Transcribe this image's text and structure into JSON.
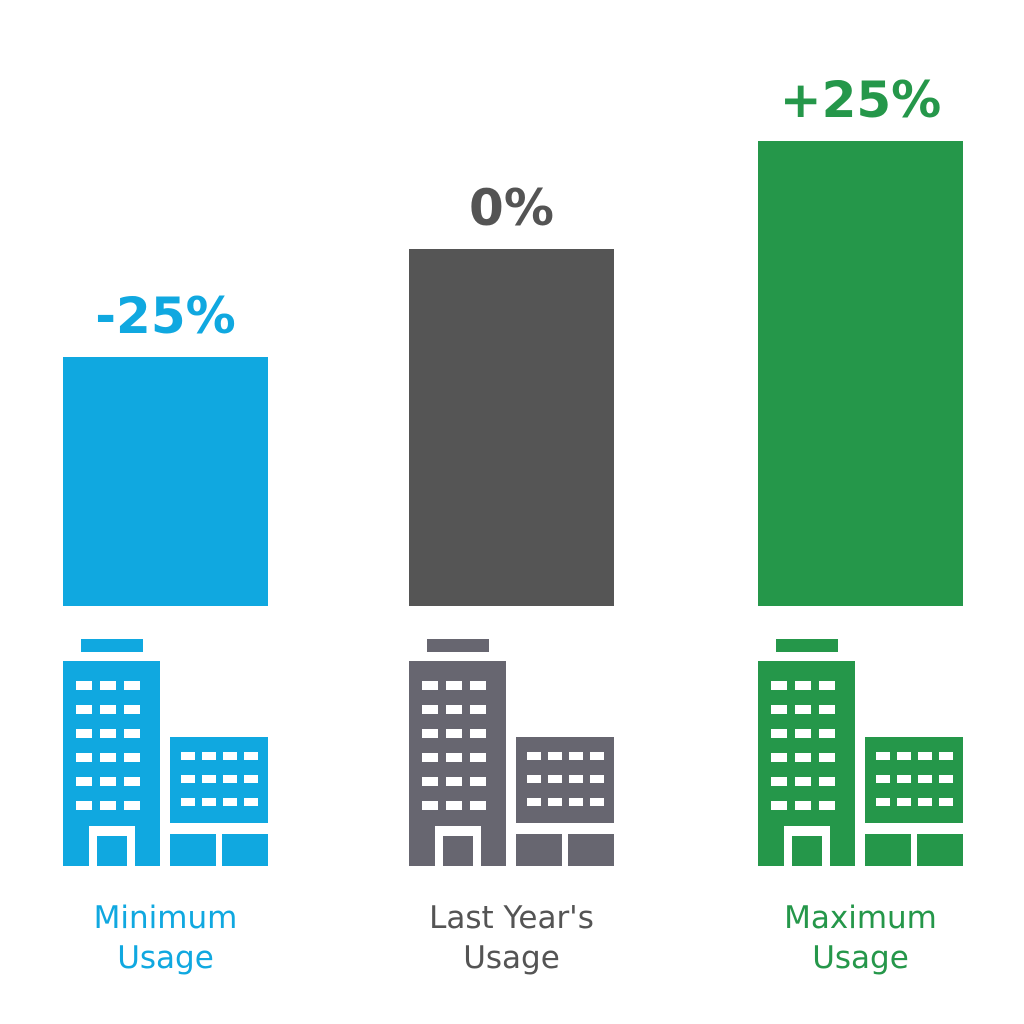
{
  "chart_data": {
    "type": "bar",
    "categories": [
      {
        "lines": [
          "Minimum",
          "Usage"
        ]
      },
      {
        "lines": [
          "Last Year's",
          "Usage"
        ]
      },
      {
        "lines": [
          "Maximum",
          "Usage"
        ]
      }
    ],
    "values": [
      -25,
      0,
      25
    ],
    "data_labels": [
      "-25%",
      "0%",
      "+25%"
    ],
    "colors": [
      "#10a8e0",
      "#555555",
      "#25974a"
    ],
    "label_colors": [
      "#10a8e0",
      "#545454",
      "#25974a"
    ],
    "icon_colors": [
      "#10a8e0",
      "#676670",
      "#25974a"
    ],
    "icon": "office-building-icon",
    "ylim": [
      -100,
      50
    ],
    "grid": false,
    "legend": "none"
  }
}
